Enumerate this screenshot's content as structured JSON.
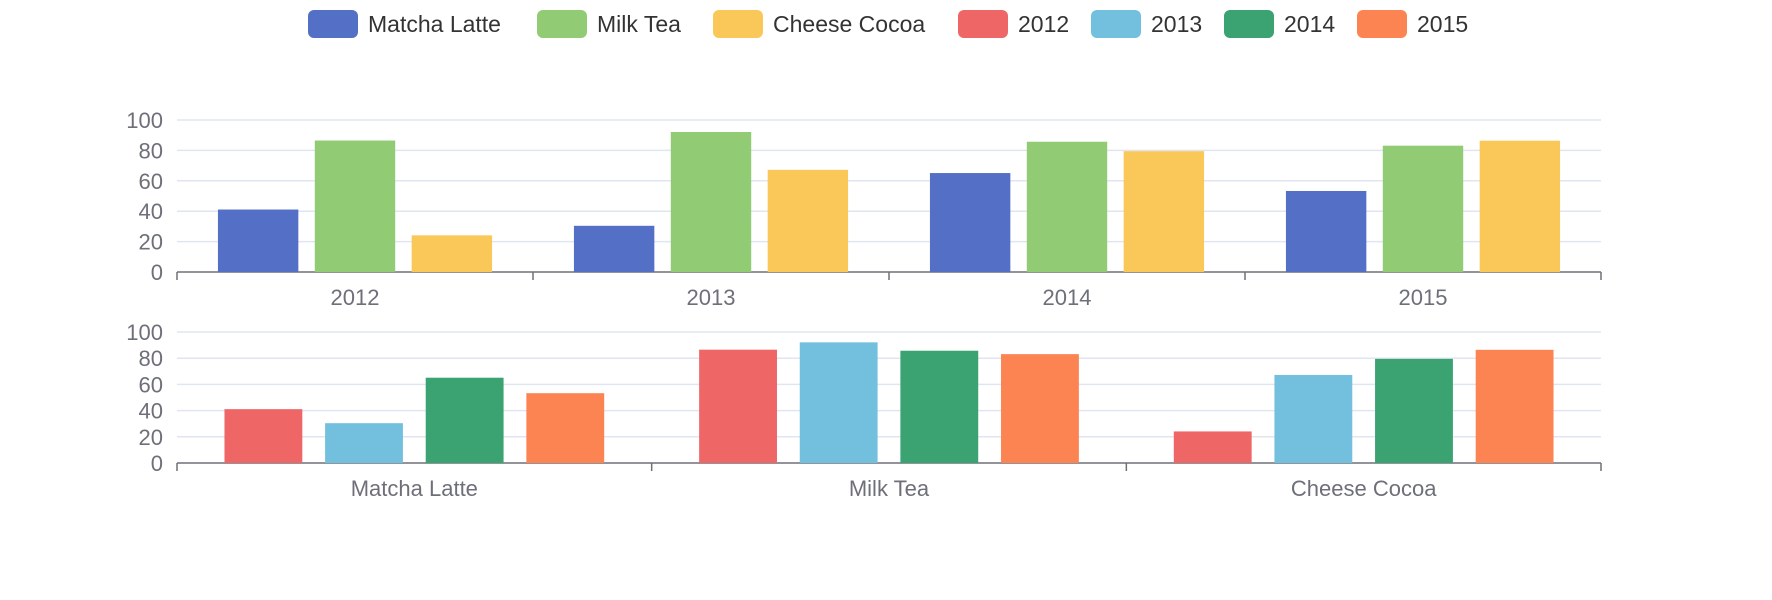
{
  "legend": {
    "items": [
      {
        "label": "Matcha Latte",
        "color": "#5470c6"
      },
      {
        "label": "Milk Tea",
        "color": "#91cc75"
      },
      {
        "label": "Cheese Cocoa",
        "color": "#fac858"
      },
      {
        "label": "2012",
        "color": "#ee6666"
      },
      {
        "label": "2013",
        "color": "#73c0de"
      },
      {
        "label": "2014",
        "color": "#3ba272"
      },
      {
        "label": "2015",
        "color": "#fc8452"
      }
    ]
  },
  "chart_data": [
    {
      "type": "bar",
      "categories": [
        "2012",
        "2013",
        "2014",
        "2015"
      ],
      "ylim": [
        0,
        100
      ],
      "yticks": [
        "0",
        "20",
        "40",
        "60",
        "80",
        "100"
      ],
      "grid": true,
      "legend_position": "top-center",
      "series": [
        {
          "name": "Matcha Latte",
          "color": "#5470c6",
          "values": [
            41.1,
            30.4,
            65.1,
            53.3
          ]
        },
        {
          "name": "Milk Tea",
          "color": "#91cc75",
          "values": [
            86.5,
            92.1,
            85.7,
            83.1
          ]
        },
        {
          "name": "Cheese Cocoa",
          "color": "#fac858",
          "values": [
            24.1,
            67.2,
            79.5,
            86.4
          ]
        }
      ]
    },
    {
      "type": "bar",
      "categories": [
        "Matcha Latte",
        "Milk Tea",
        "Cheese Cocoa"
      ],
      "ylim": [
        0,
        100
      ],
      "yticks": [
        "0",
        "20",
        "40",
        "60",
        "80",
        "100"
      ],
      "grid": true,
      "series": [
        {
          "name": "2012",
          "color": "#ee6666",
          "values": [
            41.1,
            86.5,
            24.1
          ]
        },
        {
          "name": "2013",
          "color": "#73c0de",
          "values": [
            30.4,
            92.1,
            67.2
          ]
        },
        {
          "name": "2014",
          "color": "#3ba272",
          "values": [
            65.1,
            85.7,
            79.5
          ]
        },
        {
          "name": "2015",
          "color": "#fc8452",
          "values": [
            53.3,
            83.1,
            86.4
          ]
        }
      ]
    }
  ]
}
